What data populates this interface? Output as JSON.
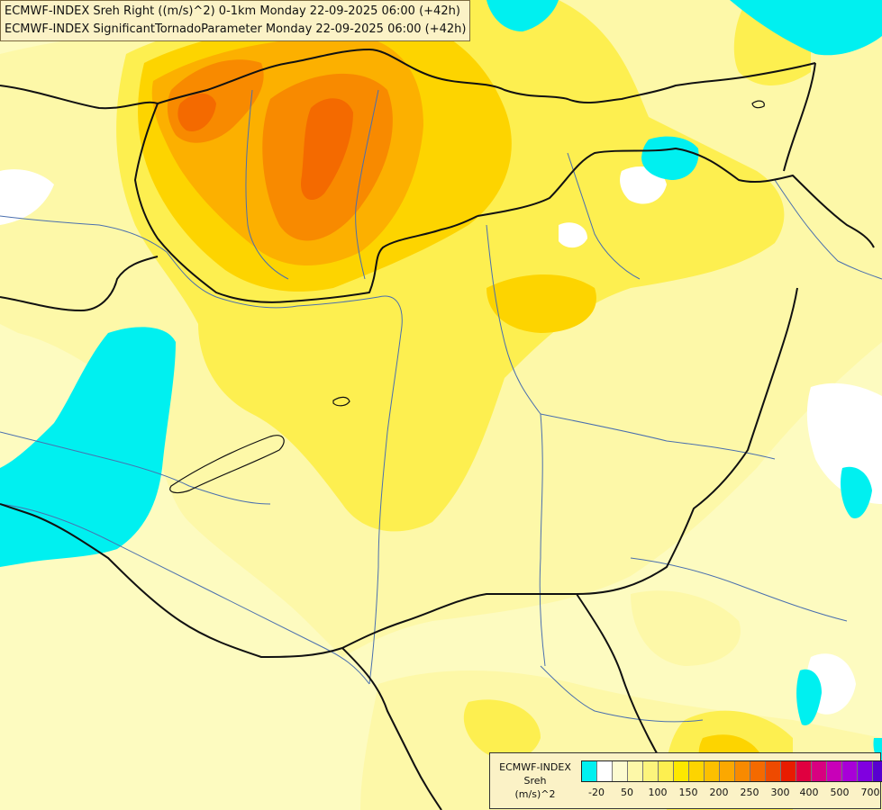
{
  "header": {
    "line1": "ECMWF-INDEX Sreh Right ((m/s)^2) 0-1km Monday 22-09-2025 06:00 (+42h)",
    "line2": "ECMWF-INDEX SignificantTornadoParameter Monday 22-09-2025 06:00 (+42h)"
  },
  "legend": {
    "title_line1": "ECMWF-INDEX",
    "title_line2": "Sreh",
    "title_line3": "(m/s)^2",
    "colors": [
      "#00f0f0",
      "#ffffff",
      "#fdfbd0",
      "#fdf8a8",
      "#fcf47c",
      "#fdef50",
      "#fde800",
      "#fdd400",
      "#fcc000",
      "#fca800",
      "#f88a00",
      "#f46a00",
      "#ee4a00",
      "#e81c00",
      "#e00040",
      "#d80080",
      "#c800b8",
      "#a800d8",
      "#8000e0",
      "#5800d0",
      "#3000b0",
      "#100080"
    ],
    "ticks": [
      "-20",
      "50",
      "100",
      "150",
      "200",
      "250",
      "300",
      "400",
      "500",
      "700"
    ]
  }
}
